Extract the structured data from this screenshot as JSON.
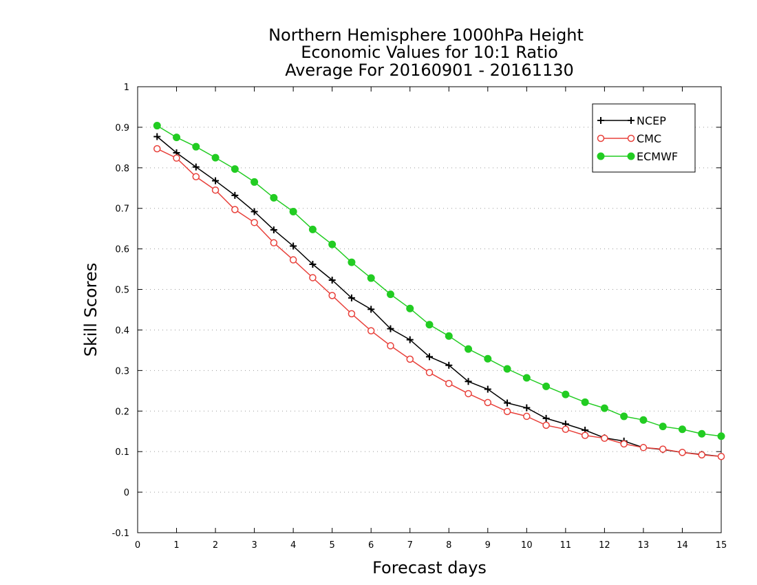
{
  "chart_data": {
    "type": "line",
    "title": [
      "Northern Hemisphere 1000hPa Height",
      "Economic Values for 10:1 Ratio",
      "Average For 20160901 - 20161130"
    ],
    "xlabel": "Forecast days",
    "ylabel": "Skill Scores",
    "xlim": [
      0,
      15
    ],
    "ylim": [
      -0.1,
      1
    ],
    "xticks": [
      0,
      1,
      2,
      3,
      4,
      5,
      6,
      7,
      8,
      9,
      10,
      11,
      12,
      13,
      14,
      15
    ],
    "yticks": [
      -0.1,
      0,
      0.1,
      0.2,
      0.3,
      0.4,
      0.5,
      0.6,
      0.7,
      0.8,
      0.9,
      1
    ],
    "ytick_labels": [
      "-0.1",
      "0",
      "0.1",
      "0.2",
      "0.3",
      "0.4",
      "0.5",
      "0.6",
      "0.7",
      "0.8",
      "0.9",
      "1"
    ],
    "grid": true,
    "legend_position": "top-right",
    "x": [
      0.5,
      1,
      1.5,
      2,
      2.5,
      3,
      3.5,
      4,
      4.5,
      5,
      5.5,
      6,
      6.5,
      7,
      7.5,
      8,
      8.5,
      9,
      9.5,
      10,
      10.5,
      11,
      11.5,
      12,
      12.5,
      13,
      13.5,
      14,
      14.5,
      15
    ],
    "series": [
      {
        "name": "NCEP",
        "color": "#000000",
        "marker": "plus",
        "values": [
          0.877,
          0.837,
          0.802,
          0.768,
          0.732,
          0.692,
          0.647,
          0.607,
          0.562,
          0.523,
          0.479,
          0.451,
          0.403,
          0.376,
          0.334,
          0.313,
          0.273,
          0.254,
          0.22,
          0.208,
          0.182,
          0.168,
          0.153,
          0.134,
          0.126,
          0.11,
          0.105,
          0.098,
          0.093,
          0.088
        ]
      },
      {
        "name": "CMC",
        "color": "#e8403a",
        "marker": "open-circle",
        "values": [
          0.847,
          0.824,
          0.778,
          0.745,
          0.697,
          0.665,
          0.615,
          0.573,
          0.529,
          0.485,
          0.44,
          0.398,
          0.361,
          0.328,
          0.295,
          0.268,
          0.243,
          0.221,
          0.199,
          0.187,
          0.165,
          0.155,
          0.14,
          0.133,
          0.119,
          0.11,
          0.106,
          0.098,
          0.092,
          0.088
        ]
      },
      {
        "name": "ECMWF",
        "color": "#22cc22",
        "marker": "filled-circle",
        "values": [
          0.904,
          0.875,
          0.852,
          0.825,
          0.797,
          0.765,
          0.726,
          0.692,
          0.648,
          0.611,
          0.567,
          0.528,
          0.488,
          0.453,
          0.413,
          0.385,
          0.353,
          0.329,
          0.304,
          0.282,
          0.261,
          0.241,
          0.222,
          0.207,
          0.187,
          0.178,
          0.162,
          0.155,
          0.144,
          0.138
        ]
      }
    ]
  }
}
